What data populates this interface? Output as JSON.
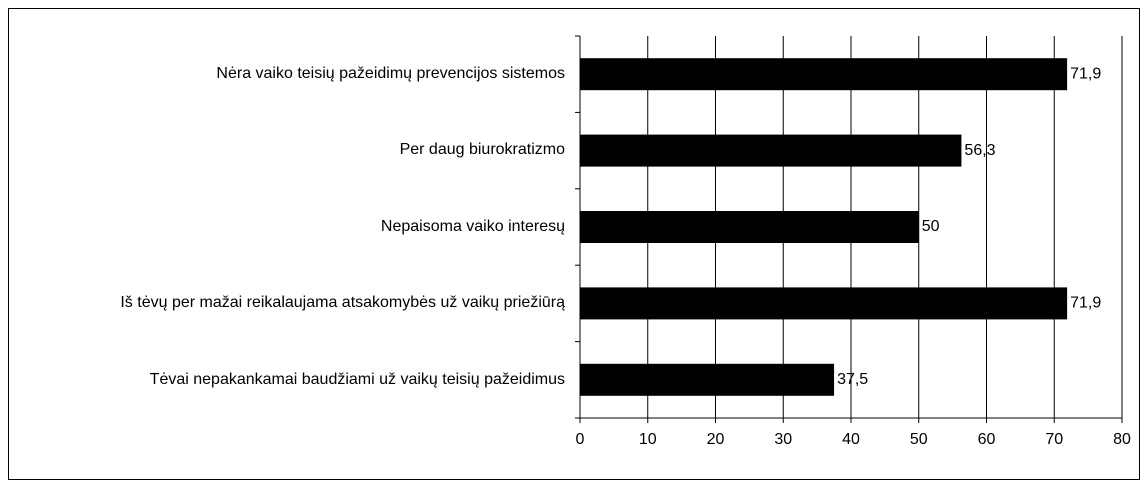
{
  "chart_data": {
    "type": "bar",
    "orientation": "horizontal",
    "categories": [
      "Nėra vaiko teisių pažeidimų prevencijos sistemos",
      "Per daug biurokratizmo",
      "Nepaisoma vaiko interesų",
      "Iš tėvų per mažai reikalaujama atsakomybės už vaikų priežiūrą",
      "Tėvai nepakankamai baudžiami už vaikų teisių pažeidimus"
    ],
    "values": [
      71.9,
      56.3,
      50,
      71.9,
      37.5
    ],
    "value_labels": [
      "71,9",
      "56,3",
      "50",
      "71,9",
      "37,5"
    ],
    "color": "#000000",
    "xlim": [
      0,
      80
    ],
    "xticks": [
      0,
      10,
      20,
      30,
      40,
      50,
      60,
      70,
      80
    ],
    "grid": true
  }
}
